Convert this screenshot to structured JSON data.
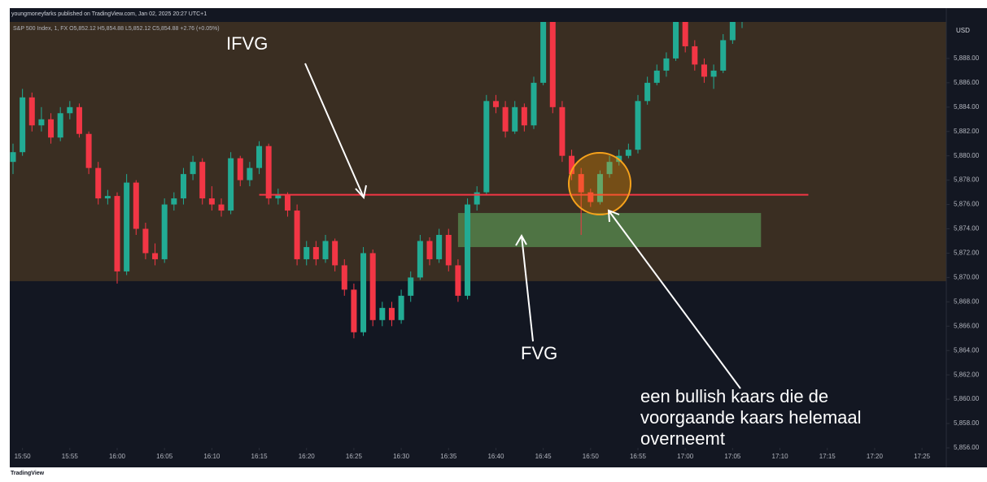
{
  "chart_data": {
    "type": "candlestick",
    "header": "youngmoneyfarks published on TradingView.com, Jan 02, 2025 20:27 UTC+1",
    "legend": "S&P 500 Index, 1, FX  O5,852.12 H5,854.88 L5,852.12 C5,854.88 +2.76 (+0.05%)",
    "currency": "USD",
    "footer": "TradingView",
    "annotations": [
      "IFVG",
      "FVG",
      "een bullish kaars die de",
      "voorgaande kaars helemaal",
      "overneemt"
    ],
    "up_color": "#22ab94",
    "down_color": "#f23645",
    "x": [
      "15:49",
      "15:50",
      "15:51",
      "15:52",
      "15:53",
      "15:54",
      "15:55",
      "15:56",
      "15:57",
      "15:58",
      "15:59",
      "16:00",
      "16:01",
      "16:02",
      "16:03",
      "16:04",
      "16:05",
      "16:06",
      "16:07",
      "16:08",
      "16:09",
      "16:10",
      "16:11",
      "16:12",
      "16:13",
      "16:14",
      "16:15",
      "16:16",
      "16:17",
      "16:18",
      "16:19",
      "16:20",
      "16:21",
      "16:22",
      "16:23",
      "16:24",
      "16:25",
      "16:26",
      "16:27",
      "16:28",
      "16:29",
      "16:30",
      "16:31",
      "16:32",
      "16:33",
      "16:34",
      "16:35",
      "16:36",
      "16:37",
      "16:38",
      "16:39",
      "16:40",
      "16:41",
      "16:42",
      "16:43",
      "16:44",
      "16:45",
      "16:46",
      "16:47",
      "16:48",
      "16:49",
      "16:50",
      "16:51",
      "16:52",
      "16:53",
      "16:54",
      "16:55",
      "16:56",
      "16:57",
      "16:58",
      "16:59",
      "17:00",
      "17:01",
      "17:02",
      "17:03",
      "17:04",
      "17:05",
      "17:06"
    ],
    "open": [
      5879.5,
      5880.3,
      5884.8,
      5882.5,
      5883,
      5881.5,
      5883.5,
      5884,
      5881.8,
      5879,
      5876.5,
      5876.7,
      5870.5,
      5877.8,
      5874,
      5872,
      5871.5,
      5876,
      5876.5,
      5878.5,
      5879.5,
      5876.5,
      5876,
      5875.5,
      5879.8,
      5878,
      5879,
      5880.8,
      5876.5,
      5876.8,
      5875.5,
      5871.5,
      5872.5,
      5871.5,
      5873,
      5871,
      5869,
      5865.5,
      5872,
      5866.5,
      5867.5,
      5866.5,
      5868.5,
      5870,
      5873,
      5871.5,
      5873.5,
      5871,
      5868.5,
      5876,
      5877,
      5884.5,
      5884,
      5882,
      5884,
      5882.5,
      5886,
      5891,
      5884,
      5880,
      5878.5,
      5877,
      5876.2,
      5878.5,
      5879.5,
      5880,
      5880.5,
      5884.5,
      5886,
      5887,
      5888,
      5891,
      5889,
      5887.5,
      5886.5,
      5887,
      5889.5,
      5891
    ],
    "high": [
      5881,
      5885.5,
      5885.2,
      5884,
      5883.5,
      5884,
      5884.5,
      5884.3,
      5882,
      5879.5,
      5877.2,
      5877,
      5878.5,
      5878,
      5874.5,
      5872.8,
      5876.5,
      5877,
      5879,
      5880,
      5879.8,
      5877.5,
      5876.5,
      5880.3,
      5880,
      5879.5,
      5881.2,
      5881,
      5877.3,
      5877,
      5876,
      5873,
      5873,
      5873.5,
      5873.2,
      5871.5,
      5869.5,
      5872.5,
      5872.3,
      5868,
      5868,
      5869,
      5870.5,
      5873.5,
      5873.3,
      5874,
      5874,
      5871.5,
      5876.5,
      5877.5,
      5885,
      5885,
      5884.5,
      5884.5,
      5884.3,
      5886.5,
      5891.5,
      5891.5,
      5884.5,
      5880.5,
      5879,
      5877.3,
      5878.8,
      5880,
      5880.5,
      5881,
      5885,
      5886.5,
      5887.5,
      5888.5,
      5891.5,
      5891.3,
      5889.5,
      5888,
      5887.5,
      5890,
      5891.5,
      5891.6
    ],
    "low": [
      5878.5,
      5880,
      5882,
      5882,
      5881,
      5881.2,
      5883,
      5881.5,
      5878.5,
      5876,
      5876,
      5869.5,
      5870.2,
      5873.5,
      5871.5,
      5871,
      5871.2,
      5875.5,
      5876,
      5878,
      5876,
      5875.5,
      5875,
      5875.2,
      5877.5,
      5877.5,
      5878.5,
      5876,
      5876,
      5875,
      5871,
      5871,
      5871,
      5871.2,
      5870.5,
      5868.5,
      5865,
      5865.2,
      5866,
      5866,
      5866,
      5866.2,
      5868,
      5869.8,
      5871,
      5871.2,
      5870.5,
      5868,
      5868.2,
      5875.5,
      5876.8,
      5883.5,
      5881.5,
      5881.8,
      5882,
      5882.2,
      5885.8,
      5883.5,
      5879.5,
      5878,
      5873.5,
      5875.8,
      5876,
      5878.2,
      5879.2,
      5879.8,
      5880.2,
      5884.2,
      5885.8,
      5886.5,
      5887.8,
      5888.5,
      5887,
      5886,
      5885.5,
      5886.8,
      5889.2,
      5890.5
    ],
    "close": [
      5880.3,
      5884.8,
      5882.5,
      5883,
      5881.5,
      5883.5,
      5884,
      5881.8,
      5879,
      5876.5,
      5876.7,
      5870.5,
      5877.8,
      5874,
      5872,
      5871.5,
      5876,
      5876.5,
      5878.5,
      5879.5,
      5876.5,
      5876,
      5875.5,
      5879.8,
      5878,
      5879,
      5880.8,
      5876.5,
      5876.8,
      5875.5,
      5871.5,
      5872.5,
      5871.5,
      5873,
      5871,
      5869,
      5865.5,
      5872,
      5866.5,
      5867.5,
      5866.5,
      5868.5,
      5870,
      5873,
      5871.5,
      5873.5,
      5871,
      5868.5,
      5876,
      5877,
      5884.5,
      5884,
      5882,
      5884,
      5882.5,
      5886,
      5891,
      5884,
      5880,
      5878.5,
      5877,
      5876.2,
      5878.5,
      5879.5,
      5880,
      5880.5,
      5884.5,
      5886,
      5887,
      5888,
      5891,
      5889,
      5887.5,
      5886.5,
      5887,
      5889.5,
      5891,
      5891.2
    ],
    "xlim": [
      "15:49",
      "17:28"
    ],
    "xticks": [
      "15:50",
      "15:55",
      "16:00",
      "16:05",
      "16:10",
      "16:15",
      "16:20",
      "16:25",
      "16:30",
      "16:35",
      "16:40",
      "16:45",
      "16:50",
      "16:55",
      "17:00",
      "17:05",
      "17:10",
      "17:15",
      "17:20",
      "17:25"
    ],
    "ylim": [
      5856,
      5891
    ],
    "yticks": [
      {
        "value": 5888,
        "label": "5,888.00"
      },
      {
        "value": 5886,
        "label": "5,886.00"
      },
      {
        "value": 5884,
        "label": "5,884.00"
      },
      {
        "value": 5882,
        "label": "5,882.00"
      },
      {
        "value": 5880,
        "label": "5,880.00"
      },
      {
        "value": 5878,
        "label": "5,878.00"
      },
      {
        "value": 5876,
        "label": "5,876.00"
      },
      {
        "value": 5874,
        "label": "5,874.00"
      },
      {
        "value": 5872,
        "label": "5,872.00"
      },
      {
        "value": 5870,
        "label": "5,870.00"
      },
      {
        "value": 5868,
        "label": "5,868.00"
      },
      {
        "value": 5866,
        "label": "5,866.00"
      },
      {
        "value": 5864,
        "label": "5,864.00"
      },
      {
        "value": 5862,
        "label": "5,862.00"
      },
      {
        "value": 5860,
        "label": "5,860.00"
      },
      {
        "value": 5858,
        "label": "5,858.00"
      },
      {
        "value": 5856,
        "label": "5,856.00"
      }
    ],
    "premium_zone": {
      "low": 5869.7,
      "color": "#3a2e22"
    },
    "fvg_zone": {
      "from": "16:36",
      "to": "17:08",
      "low": 5872.5,
      "high": 5875.3,
      "color": "#54804a"
    },
    "ifvg_line": {
      "from": "16:15",
      "to": "17:13",
      "value": 5876.8,
      "color": "#f23645"
    }
  }
}
